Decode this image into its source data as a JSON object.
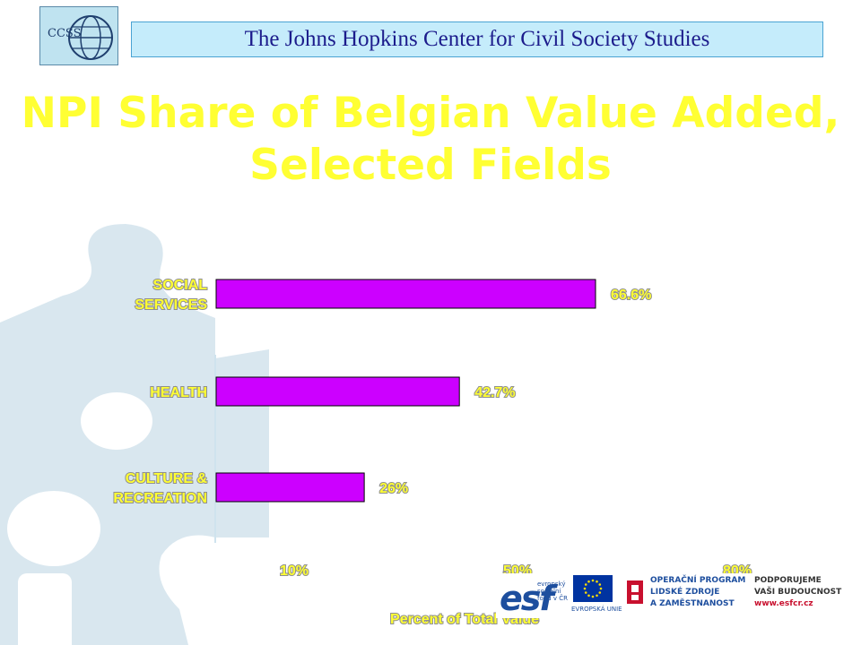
{
  "header": {
    "logo_text": "CCSS",
    "banner": "The Johns Hopkins Center for Civil Society Studies"
  },
  "slide": {
    "title_line1": "NPI Share of Belgian Value Added,",
    "title_line2": "Selected Fields"
  },
  "colors": {
    "title": "#ffff33",
    "bar": "#cc00ff",
    "banner_text": "#1c1c8c"
  },
  "chart_data": {
    "type": "bar",
    "orientation": "horizontal",
    "categories": [
      "SOCIAL SERVICES",
      "HEALTH",
      "CULTURE & RECREATION"
    ],
    "category_lines": [
      [
        "SOCIAL",
        "SERVICES"
      ],
      [
        "HEALTH"
      ],
      [
        "CULTURE &",
        "RECREATION"
      ]
    ],
    "values": [
      66.6,
      42.7,
      26
    ],
    "data_labels": [
      "66.6%",
      "42.7%",
      "26%"
    ],
    "xticks": [
      10,
      50,
      80
    ],
    "xtick_labels": [
      "10%",
      "50%",
      "80%"
    ],
    "xlabel": "Percent of Total Value",
    "grid": false,
    "legend": "none"
  },
  "footer": {
    "esf_mark": "esf",
    "esf_sub": [
      "evropský",
      "sociální",
      "fond v ČR"
    ],
    "eu_label": "EVROPSKÁ UNIE",
    "op_lines": [
      "OPERAČNÍ PROGRAM",
      "LIDSKÉ ZDROJE",
      "A ZAMĚSTNANOST"
    ],
    "support_lines": [
      "PODPORUJEME",
      "VAŠI BUDOUCNOST",
      "www.esfcr.cz"
    ],
    "flag_color": "#0033a0",
    "star_color": "#ffdd00",
    "brand_color": "#1d4e9e"
  }
}
